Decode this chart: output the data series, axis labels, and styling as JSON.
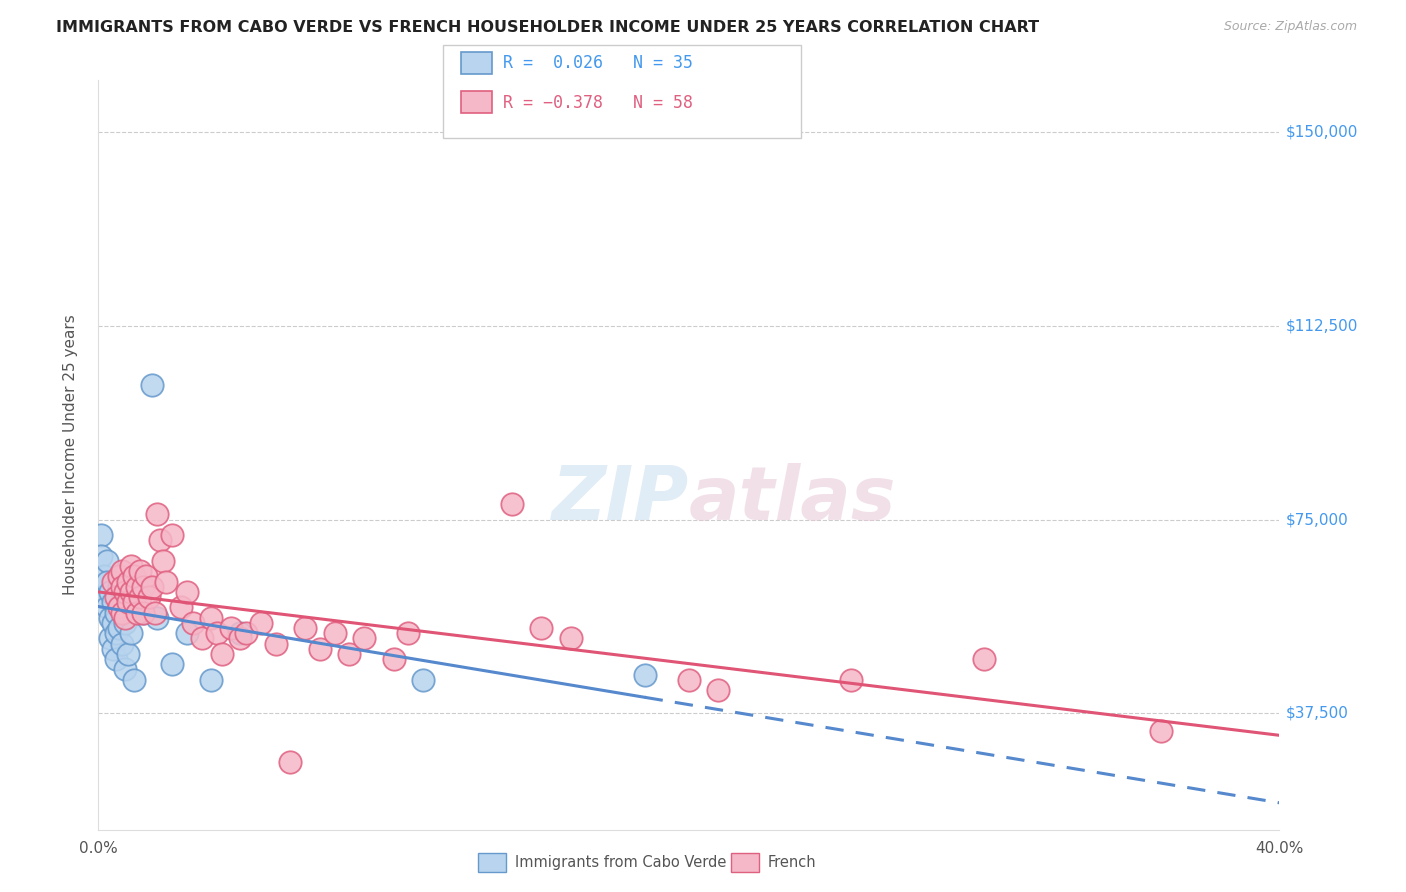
{
  "title": "IMMIGRANTS FROM CABO VERDE VS FRENCH HOUSEHOLDER INCOME UNDER 25 YEARS CORRELATION CHART",
  "source": "Source: ZipAtlas.com",
  "ylabel": "Householder Income Under 25 years",
  "R1": 0.026,
  "N1": 35,
  "R2": -0.378,
  "N2": 58,
  "color_blue_fill": "#b8d4ee",
  "color_blue_edge": "#6699cc",
  "color_pink_fill": "#f5b8c8",
  "color_pink_edge": "#e06080",
  "color_blue_line": "#5588cc",
  "color_pink_line": "#e05575",
  "color_y_label": "#4499ee",
  "watermark_color": "#cce0f0",
  "legend_label1": "Immigrants from Cabo Verde",
  "legend_label2": "French",
  "x_range": [
    0.0,
    0.4
  ],
  "y_range": [
    15000,
    160000
  ],
  "y_ticks": [
    37500,
    75000,
    112500,
    150000
  ],
  "y_tick_labels": [
    "$37,500",
    "$75,000",
    "$112,500",
    "$150,000"
  ],
  "x_ticks": [
    0.0,
    0.05,
    0.1,
    0.15,
    0.2,
    0.25,
    0.3,
    0.35,
    0.4
  ],
  "blue_points": [
    [
      0.001,
      72000
    ],
    [
      0.001,
      68000
    ],
    [
      0.002,
      64000
    ],
    [
      0.002,
      60000
    ],
    [
      0.003,
      67000
    ],
    [
      0.003,
      63000
    ],
    [
      0.003,
      58000
    ],
    [
      0.004,
      61000
    ],
    [
      0.004,
      56000
    ],
    [
      0.004,
      52000
    ],
    [
      0.005,
      59000
    ],
    [
      0.005,
      55000
    ],
    [
      0.005,
      50000
    ],
    [
      0.006,
      57000
    ],
    [
      0.006,
      53000
    ],
    [
      0.006,
      48000
    ],
    [
      0.007,
      62000
    ],
    [
      0.007,
      54000
    ],
    [
      0.008,
      58000
    ],
    [
      0.008,
      51000
    ],
    [
      0.009,
      55000
    ],
    [
      0.009,
      46000
    ],
    [
      0.01,
      60000
    ],
    [
      0.01,
      49000
    ],
    [
      0.011,
      53000
    ],
    [
      0.012,
      44000
    ],
    [
      0.015,
      57000
    ],
    [
      0.018,
      101000
    ],
    [
      0.02,
      56000
    ],
    [
      0.025,
      47000
    ],
    [
      0.03,
      53000
    ],
    [
      0.038,
      44000
    ],
    [
      0.048,
      53000
    ],
    [
      0.11,
      44000
    ],
    [
      0.185,
      45000
    ]
  ],
  "pink_points": [
    [
      0.005,
      63000
    ],
    [
      0.006,
      60000
    ],
    [
      0.007,
      64000
    ],
    [
      0.007,
      58000
    ],
    [
      0.008,
      65000
    ],
    [
      0.008,
      62000
    ],
    [
      0.008,
      57000
    ],
    [
      0.009,
      61000
    ],
    [
      0.009,
      56000
    ],
    [
      0.01,
      63000
    ],
    [
      0.01,
      59000
    ],
    [
      0.011,
      66000
    ],
    [
      0.011,
      61000
    ],
    [
      0.012,
      64000
    ],
    [
      0.012,
      59000
    ],
    [
      0.013,
      62000
    ],
    [
      0.013,
      57000
    ],
    [
      0.014,
      65000
    ],
    [
      0.014,
      60000
    ],
    [
      0.015,
      62000
    ],
    [
      0.015,
      57000
    ],
    [
      0.016,
      64000
    ],
    [
      0.017,
      60000
    ],
    [
      0.018,
      62000
    ],
    [
      0.019,
      57000
    ],
    [
      0.02,
      76000
    ],
    [
      0.021,
      71000
    ],
    [
      0.022,
      67000
    ],
    [
      0.023,
      63000
    ],
    [
      0.025,
      72000
    ],
    [
      0.028,
      58000
    ],
    [
      0.03,
      61000
    ],
    [
      0.032,
      55000
    ],
    [
      0.035,
      52000
    ],
    [
      0.038,
      56000
    ],
    [
      0.04,
      53000
    ],
    [
      0.042,
      49000
    ],
    [
      0.045,
      54000
    ],
    [
      0.048,
      52000
    ],
    [
      0.05,
      53000
    ],
    [
      0.055,
      55000
    ],
    [
      0.06,
      51000
    ],
    [
      0.065,
      28000
    ],
    [
      0.07,
      54000
    ],
    [
      0.075,
      50000
    ],
    [
      0.08,
      53000
    ],
    [
      0.085,
      49000
    ],
    [
      0.09,
      52000
    ],
    [
      0.1,
      48000
    ],
    [
      0.105,
      53000
    ],
    [
      0.14,
      78000
    ],
    [
      0.15,
      54000
    ],
    [
      0.16,
      52000
    ],
    [
      0.2,
      44000
    ],
    [
      0.21,
      42000
    ],
    [
      0.255,
      44000
    ],
    [
      0.3,
      48000
    ],
    [
      0.36,
      34000
    ]
  ]
}
